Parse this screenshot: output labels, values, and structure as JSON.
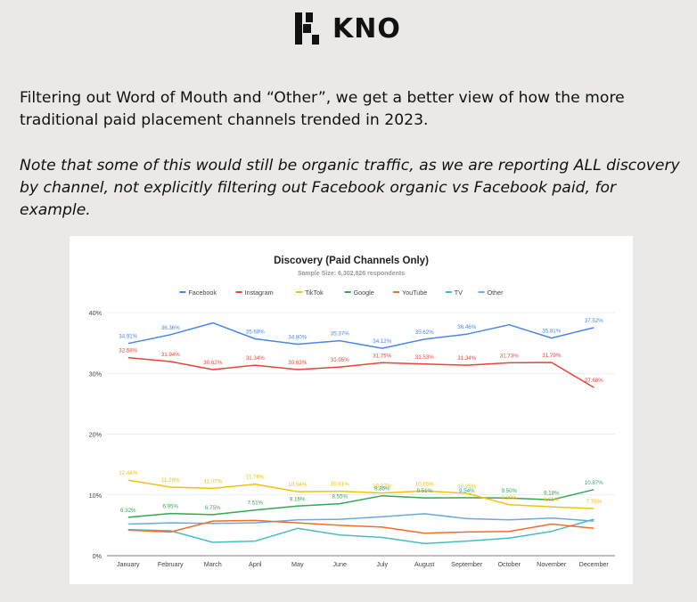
{
  "brand": {
    "name": "KNO"
  },
  "intro": "Filtering out Word of Mouth and “Other”, we get a better view of how the more traditional paid placement channels trended in 2023.",
  "note": "Note that some of this would still be organic traffic, as we are reporting ALL discovery by channel, not explicitly filtering out Facebook organic vs Facebook paid, for example.",
  "chart_data": {
    "type": "line",
    "title": "Discovery (Paid Channels Only)",
    "subtitle": "Sample Size: 6,302,826 respondents",
    "xlabel": "",
    "ylabel": "",
    "ylim": [
      0,
      40
    ],
    "y_ticks": [
      "0%",
      "10%",
      "20%",
      "30%",
      "40%"
    ],
    "grid": true,
    "legend_position": "top",
    "categories": [
      "January",
      "February",
      "March",
      "April",
      "May",
      "June",
      "July",
      "August",
      "September",
      "October",
      "November",
      "December"
    ],
    "series": [
      {
        "name": "Facebook",
        "color": "#4a86e8",
        "values": [
          34.91,
          36.36,
          38.3,
          35.68,
          34.8,
          35.37,
          34.12,
          35.62,
          36.46,
          38.0,
          35.81,
          37.52
        ],
        "labels": [
          "34.91%",
          "36.36%",
          "",
          "35.68%",
          "34.80%",
          "35.37%",
          "34.12%",
          "35.62%",
          "36.46%",
          "",
          "35.81%",
          "37.52%"
        ]
      },
      {
        "name": "Instagram",
        "color": "#e8443a",
        "values": [
          32.58,
          31.94,
          30.62,
          31.34,
          30.63,
          31.05,
          31.75,
          31.53,
          31.34,
          31.73,
          31.79,
          27.68
        ],
        "labels": [
          "32.58%",
          "31.94%",
          "30.62%",
          "31.34%",
          "30.63%",
          "31.05%",
          "31.75%",
          "31.53%",
          "31.34%",
          "31.73%",
          "31.79%",
          "27.68%"
        ]
      },
      {
        "name": "TikTok",
        "color": "#f4c20d",
        "values": [
          12.44,
          11.28,
          11.07,
          11.76,
          10.54,
          10.61,
          10.32,
          10.65,
          10.25,
          8.38,
          8.05,
          7.75
        ],
        "labels": [
          "12.44%",
          "11.28%",
          "11.07%",
          "11.76%",
          "10.54%",
          "10.61%",
          "10.32%",
          "10.65%",
          "10.25%",
          "8.38%",
          "8.05%",
          "7.75%"
        ]
      },
      {
        "name": "Google",
        "color": "#34a853",
        "values": [
          6.32,
          6.95,
          6.75,
          7.51,
          8.16,
          8.55,
          9.86,
          9.51,
          9.54,
          9.5,
          9.18,
          10.87
        ],
        "labels": [
          "6.32%",
          "6.95%",
          "6.75%",
          "7.51%",
          "8.16%",
          "8.55%",
          "9.86%",
          "9.51%",
          "9.54%",
          "9.50%",
          "9.18%",
          "10.87%"
        ]
      },
      {
        "name": "YouTube",
        "color": "#f06e2a",
        "values": [
          4.2,
          3.9,
          5.7,
          5.8,
          5.4,
          5.0,
          4.7,
          3.7,
          3.9,
          4.0,
          5.2,
          4.5
        ],
        "labels": []
      },
      {
        "name": "TV",
        "color": "#46bdc6",
        "values": [
          4.3,
          4.1,
          2.2,
          2.4,
          4.5,
          3.4,
          3.0,
          2.0,
          2.4,
          2.9,
          4.0,
          6.0
        ],
        "labels": []
      },
      {
        "name": "Other",
        "color": "#6fa8dc",
        "values": [
          5.2,
          5.4,
          5.3,
          5.4,
          5.9,
          6.0,
          6.4,
          6.9,
          6.1,
          5.9,
          6.2,
          5.7
        ],
        "labels": []
      }
    ]
  }
}
